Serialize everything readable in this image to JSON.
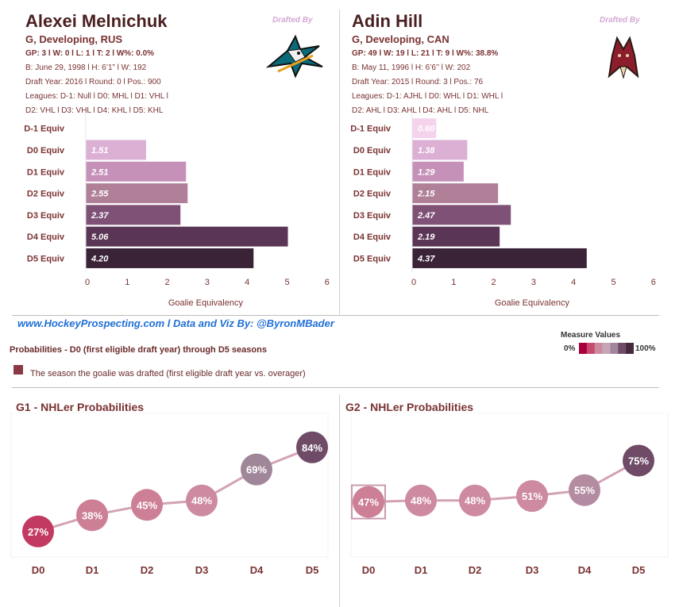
{
  "players": [
    {
      "name": "Alexei Melnichuk",
      "subtitle": "G, Developing, RUS",
      "stats": "GP: 3 l W: 0 l L: 1  l T: 2  l W%: 0.0%",
      "bio": "B: June 29, 1998 l H: 6’1” l W: 192",
      "draft": "Draft Year: 2016 l Round: 0 l Pos.: 900",
      "leagues1": "Leagues: D-1: Null l D0: MHL l D1: VHL l",
      "leagues2": "D2: VHL l D3: VHL l D4: KHL l D5: KHL",
      "drafted_by": "Drafted By",
      "team_logo": "sharks-logo"
    },
    {
      "name": "Adin Hill",
      "subtitle": "G, Developing, CAN",
      "stats": "GP: 49 l W: 19 l L: 21  l T: 9  l W%: 38.8%",
      "bio": "B: May 11, 1996 l H: 6’6’’ l W: 202",
      "draft": "Draft Year: 2015 l Round: 3 l Pos.: 76",
      "leagues1": "Leagues: D-1: AJHL l D0: WHL l D1: WHL l",
      "leagues2": "D2: AHL l D3: AHL l D4: AHL l D5: NHL",
      "drafted_by": "Drafted By",
      "team_logo": "coyotes-logo"
    }
  ],
  "credit": "www.HockeyProspecting.com  l  Data and Viz By: @ByronMBader",
  "probabilities_title": "Probabilities - D0 (first eligible draft year) through D5 seasons",
  "legend_text": "The season the goalie was drafted (first eligible draft year vs. overager)",
  "measure_values": {
    "title": "Measure Values",
    "min_label": "0%",
    "max_label": "100%"
  },
  "colors": {
    "palette": [
      "#a8003c",
      "#c84a6e",
      "#cc8a9e",
      "#c8a4b6",
      "#a1879b",
      "#6f4b67",
      "#452a3e"
    ],
    "drafted_marker": "#8a3a44",
    "credit": "#1f6fd6"
  },
  "chart_data": [
    {
      "type": "bar",
      "orientation": "horizontal",
      "categories": [
        "D-1 Equiv",
        "D0 Equiv",
        "D1 Equiv",
        "D2 Equiv",
        "D3 Equiv",
        "D4 Equiv",
        "D5 Equiv"
      ],
      "values": [
        null,
        1.51,
        2.51,
        2.55,
        2.37,
        5.06,
        4.2
      ],
      "value_labels": [
        "",
        "1.51",
        "2.51",
        "2.55",
        "2.37",
        "5.06",
        "4.20"
      ],
      "colors": [
        "#f5d3ec",
        "#dcb0d4",
        "#c691b9",
        "#b08099",
        "#7f5177",
        "#5a3555",
        "#3a2237"
      ],
      "xlabel": "Goalie Equivalency",
      "xlim": [
        0,
        6
      ],
      "ticks": [
        0,
        1,
        2,
        3,
        4,
        5,
        6
      ]
    },
    {
      "type": "bar",
      "orientation": "horizontal",
      "categories": [
        "D-1 Equiv",
        "D0 Equiv",
        "D1 Equiv",
        "D2 Equiv",
        "D3 Equiv",
        "D4 Equiv",
        "D5 Equiv"
      ],
      "values": [
        0.6,
        1.38,
        1.29,
        2.15,
        2.47,
        2.19,
        4.37
      ],
      "value_labels": [
        "0.60",
        "1.38",
        "1.29",
        "2.15",
        "2.47",
        "2.19",
        "4.37"
      ],
      "colors": [
        "#f5d3ec",
        "#dcb0d4",
        "#c691b9",
        "#b08099",
        "#7f5177",
        "#5a3555",
        "#3a2237"
      ],
      "xlabel": "Goalie Equivalency",
      "xlim": [
        0,
        6
      ],
      "ticks": [
        0,
        1,
        2,
        3,
        4,
        5,
        6
      ]
    },
    {
      "type": "line",
      "title": "G1 - NHLer Probabilities",
      "categories": [
        "D0",
        "D1",
        "D2",
        "D3",
        "D4",
        "D5"
      ],
      "values": [
        27,
        38,
        45,
        48,
        69,
        84
      ],
      "labels": [
        "27%",
        "38%",
        "45%",
        "48%",
        "69%",
        "84%"
      ],
      "drafted_index": null,
      "ylim": [
        0,
        100
      ]
    },
    {
      "type": "line",
      "title": "G2 - NHLer Probabilities",
      "categories": [
        "D0",
        "D1",
        "D2",
        "D3",
        "D4",
        "D5"
      ],
      "values": [
        47,
        48,
        48,
        51,
        55,
        75
      ],
      "labels": [
        "47%",
        "48%",
        "48%",
        "51%",
        "55%",
        "75%"
      ],
      "drafted_index": 0,
      "ylim": [
        0,
        100
      ]
    }
  ]
}
